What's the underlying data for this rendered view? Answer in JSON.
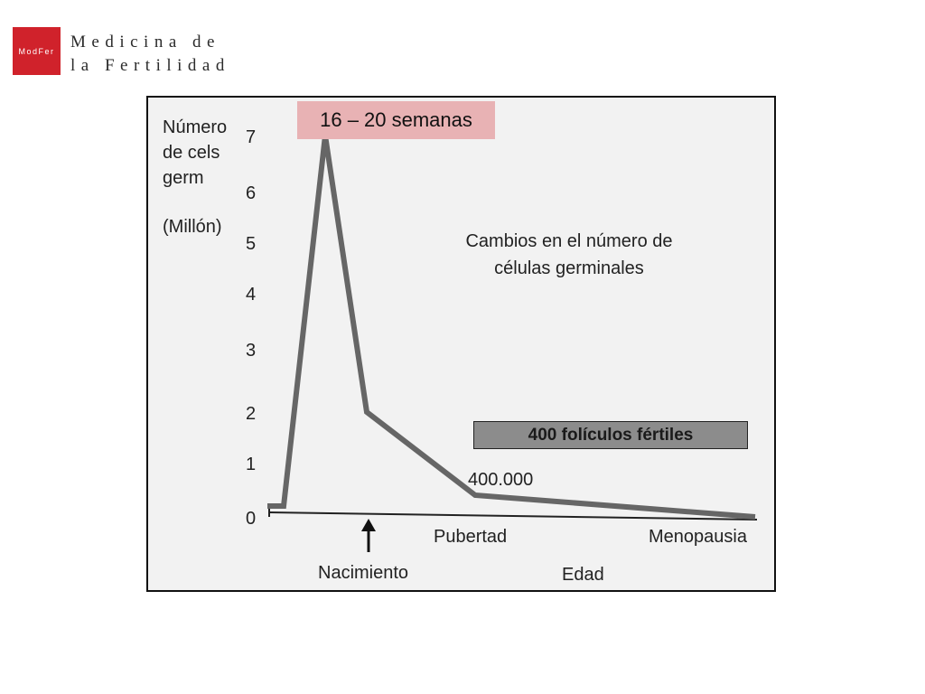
{
  "header": {
    "logo_text": "ModFer",
    "brand_line1": "Medicina de",
    "brand_line2": "la Fertilidad",
    "logo_color": "#d0222b"
  },
  "callout": {
    "weeks": "16 – 20 semanas",
    "fertile": "400 folículos fértiles",
    "color_weeks": "#e8b2b4",
    "color_fertile": "#8c8c8c"
  },
  "chart_data": {
    "type": "line",
    "title_line1": "Cambios en el número de",
    "title_line2": "células germinales",
    "ylabel_lines": [
      "Número",
      "de cels",
      "germ",
      "(Millón)"
    ],
    "xlabel": "Edad",
    "y_ticks": [
      "0",
      "1",
      "2",
      "3",
      "4",
      "5",
      "6",
      "7"
    ],
    "ylim": [
      0,
      7
    ],
    "x_labels": [
      "Nacimiento",
      "Pubertad",
      "Menopausia"
    ],
    "annotation": "400.000",
    "series": [
      {
        "x": [
          "",
          "",
          "16 – 20 semanas",
          "Nacimiento",
          "Pubertad",
          "Menopausia"
        ],
        "values": [
          0.2,
          0.2,
          7.0,
          2.0,
          0.4,
          0.0
        ]
      }
    ],
    "grid": false,
    "line_color": "#666666"
  }
}
